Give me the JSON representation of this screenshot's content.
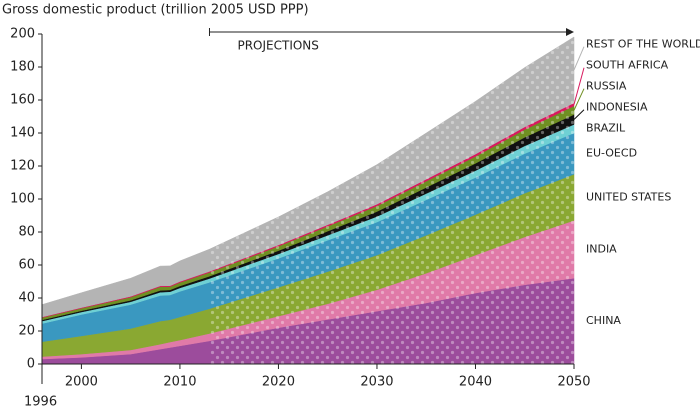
{
  "chart_data": {
    "type": "stacked_area",
    "y_axis_title": "Gross domestic product (trillion 2005 USD PPP)",
    "x": [
      1996,
      2000,
      2005,
      2008,
      2009,
      2010,
      2013,
      2020,
      2025,
      2030,
      2035,
      2040,
      2045,
      2050
    ],
    "series": [
      {
        "name": "CHINA",
        "color": "#9c4c9c",
        "values": [
          3,
          4,
          6,
          9,
          10,
          11,
          14,
          22,
          27,
          32,
          37,
          43,
          48,
          52
        ]
      },
      {
        "name": "INDIA",
        "color": "#e07aa8",
        "values": [
          1.5,
          2,
          2.5,
          3,
          3.3,
          3.5,
          4.5,
          7,
          9.5,
          13,
          18,
          23,
          29,
          35
        ]
      },
      {
        "name": "UNITED STATES",
        "color": "#8aa832",
        "values": [
          9,
          11,
          13,
          14,
          13.5,
          14,
          15,
          17.5,
          19.5,
          21,
          23,
          24.5,
          26.5,
          28
        ]
      },
      {
        "name": "EU-OECD",
        "color": "#3a98c0",
        "values": [
          11,
          13,
          14.5,
          15.5,
          15,
          15.5,
          16,
          17.5,
          19,
          20,
          21.5,
          22.5,
          24,
          25
        ]
      },
      {
        "name": "BRAZIL",
        "color": "#6fd0d4",
        "values": [
          1.5,
          1.5,
          1.7,
          2,
          2,
          2.1,
          2.3,
          2.7,
          3,
          3.4,
          3.8,
          4.2,
          4.7,
          5.2
        ]
      },
      {
        "name": "INDONESIA",
        "color": "#111111",
        "values": [
          0.7,
          0.8,
          0.9,
          1.1,
          1.1,
          1.2,
          1.4,
          2,
          2.5,
          3,
          3.7,
          4.4,
          5.2,
          6
        ]
      },
      {
        "name": "RUSSIA",
        "color": "#6f8f22",
        "values": [
          1.4,
          1.5,
          1.9,
          2.2,
          2,
          2.1,
          2.3,
          2.7,
          3,
          3.4,
          3.8,
          4.2,
          4.7,
          5.2
        ]
      },
      {
        "name": "SOUTH AFRICA",
        "color": "#d8195e",
        "values": [
          0.4,
          0.4,
          0.5,
          0.55,
          0.55,
          0.6,
          0.6,
          0.75,
          0.9,
          1.05,
          1.2,
          1.4,
          1.6,
          1.8
        ]
      },
      {
        "name": "REST OF THE WORLD",
        "color": "#b4b4b4",
        "values": [
          7.5,
          9,
          11,
          12,
          12,
          12.5,
          13.5,
          17,
          20,
          24,
          28,
          32,
          36,
          40
        ]
      }
    ],
    "xlim": [
      1996,
      2050
    ],
    "xticks": [
      1996,
      2000,
      2010,
      2020,
      2030,
      2040,
      2050
    ],
    "ylim": [
      0,
      200
    ],
    "yticks": [
      0,
      20,
      40,
      60,
      80,
      100,
      120,
      140,
      160,
      180,
      200
    ],
    "projections": {
      "label": "PROJECTIONS",
      "range": [
        2013,
        2050
      ]
    }
  }
}
